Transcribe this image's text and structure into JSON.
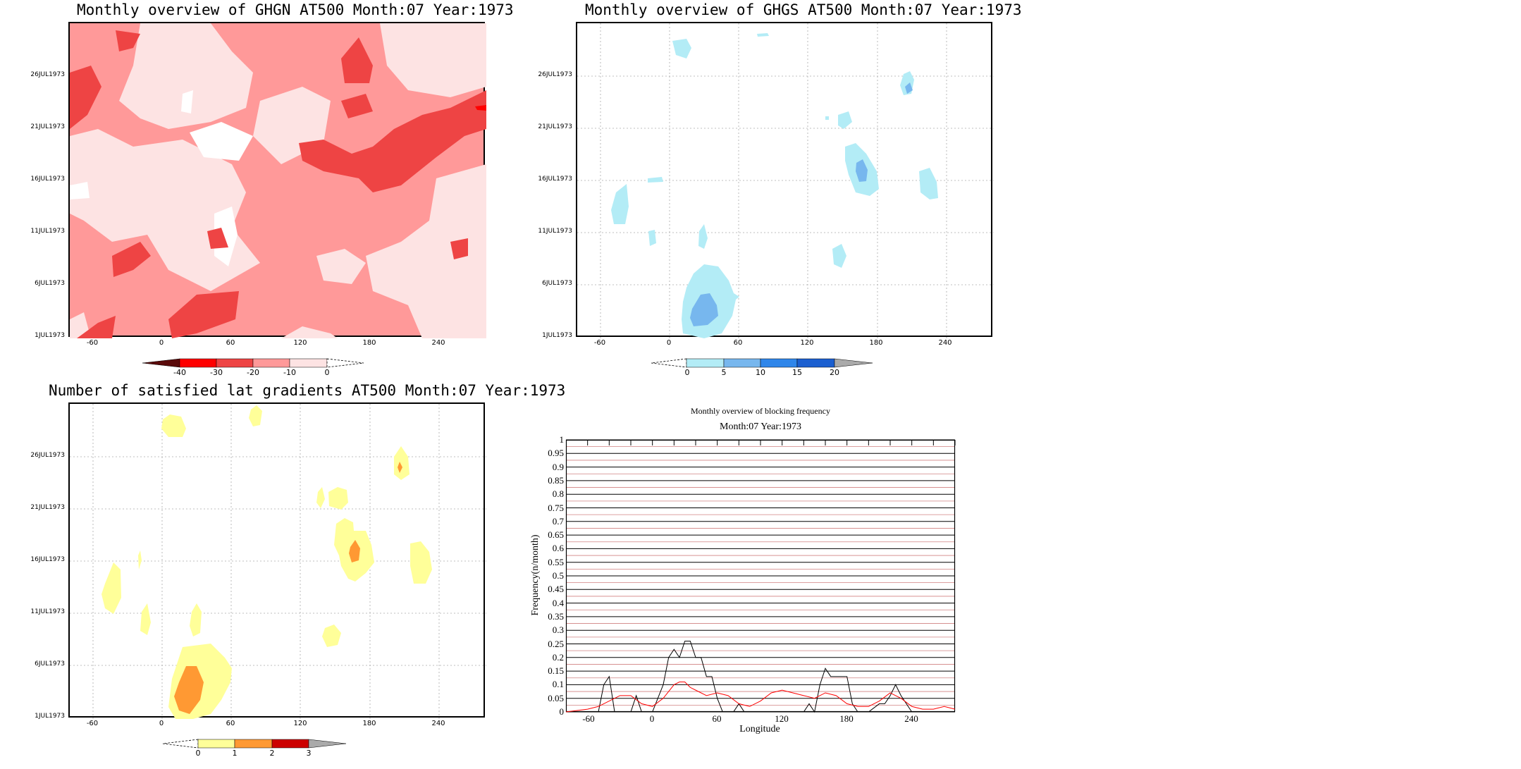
{
  "panels": {
    "ghgn": {
      "title": "Monthly overview of GHGN AT500 Month:07 Year:1973",
      "colorbar_labels": [
        "-40",
        "-30",
        "-20",
        "-10",
        "0"
      ],
      "colors": [
        "#5a0a0a",
        "#ff0000",
        "#ee4444",
        "#ff9999",
        "#fde3e3"
      ]
    },
    "ghgs": {
      "title": "Monthly overview of GHGS AT500 Month:07 Year:1973",
      "colorbar_labels": [
        "0",
        "5",
        "10",
        "15",
        "20"
      ],
      "colors": [
        "#b3ecf6",
        "#77b7ee",
        "#2f86ea",
        "#1b5fd0",
        "#aaaaaa"
      ]
    },
    "grad": {
      "title": "Number of satisfied lat gradients AT500 Month:07 Year:1973",
      "colorbar_labels": [
        "0",
        "1",
        "2",
        "3"
      ],
      "colors": [
        "#ffff99",
        "#ff9933",
        "#cc0000",
        "#aaaaaa"
      ]
    },
    "freq": {
      "title": "Monthly overview of blocking frequency",
      "subtitle": "Month:07 Year:1973",
      "xlabel": "Longitude",
      "ylabel": "Frequency(n/month)"
    }
  },
  "axes": {
    "time_labels": [
      "1JUL1973",
      "6JUL1973",
      "11JUL1973",
      "16JUL1973",
      "21JUL1973",
      "26JUL1973"
    ],
    "lon_labels": [
      "-60",
      "0",
      "60",
      "120",
      "180",
      "240"
    ],
    "freq_ticks": [
      "0",
      "0.05",
      "0.1",
      "0.15",
      "0.2",
      "0.25",
      "0.3",
      "0.35",
      "0.4",
      "0.45",
      "0.5",
      "0.55",
      "0.6",
      "0.65",
      "0.7",
      "0.75",
      "0.8",
      "0.85",
      "0.9",
      "0.95",
      "1"
    ]
  },
  "chart_data": [
    {
      "type": "heatmap",
      "title": "Monthly overview of GHGN AT500 Month:07 Year:1973",
      "x": "longitude",
      "y": "time",
      "xlim": [
        -80,
        280
      ],
      "levels": [
        -40,
        -30,
        -20,
        -10,
        0
      ]
    },
    {
      "type": "heatmap",
      "title": "Monthly overview of GHGS AT500 Month:07 Year:1973",
      "x": "longitude",
      "y": "time",
      "xlim": [
        -80,
        280
      ],
      "levels": [
        0,
        5,
        10,
        15,
        20
      ]
    },
    {
      "type": "heatmap",
      "title": "Number of satisfied lat gradients AT500 Month:07 Year:1973",
      "x": "longitude",
      "y": "time",
      "xlim": [
        -80,
        280
      ],
      "levels": [
        0,
        1,
        2,
        3
      ]
    },
    {
      "type": "line",
      "title": "Monthly overview of blocking frequency",
      "subtitle": "Month:07 Year:1973",
      "xlabel": "Longitude",
      "ylabel": "Frequency(n/month)",
      "xlim": [
        -80,
        280
      ],
      "ylim": [
        0,
        1
      ],
      "series": [
        {
          "color": "#000000",
          "x": [
            -80,
            -60,
            -50,
            -45,
            -40,
            -35,
            -30,
            -20,
            -15,
            -10,
            -5,
            0,
            5,
            10,
            15,
            20,
            25,
            30,
            35,
            40,
            45,
            50,
            55,
            60,
            65,
            70,
            75,
            80,
            85,
            90,
            95,
            100,
            110,
            120,
            130,
            140,
            145,
            150,
            155,
            160,
            165,
            170,
            175,
            180,
            185,
            190,
            200,
            210,
            215,
            220,
            225,
            230,
            240,
            250,
            260,
            270,
            280
          ],
          "y": [
            0,
            0,
            0,
            0.1,
            0.13,
            0,
            0,
            0,
            0.06,
            0,
            0,
            0,
            0.05,
            0.1,
            0.2,
            0.23,
            0.2,
            0.26,
            0.26,
            0.2,
            0.2,
            0.13,
            0.13,
            0.05,
            0,
            0,
            0,
            0.03,
            0,
            0,
            0,
            0,
            0,
            0,
            0,
            0,
            0.03,
            0,
            0.1,
            0.16,
            0.13,
            0.13,
            0.13,
            0.13,
            0.03,
            0,
            0,
            0.03,
            0.03,
            0.06,
            0.1,
            0.06,
            0,
            0,
            0,
            0,
            0
          ]
        },
        {
          "color": "#ff0000",
          "x": [
            -80,
            -60,
            -50,
            -40,
            -30,
            -20,
            -10,
            0,
            10,
            20,
            25,
            30,
            35,
            40,
            50,
            60,
            70,
            80,
            90,
            100,
            110,
            120,
            130,
            140,
            150,
            160,
            170,
            180,
            190,
            200,
            210,
            220,
            230,
            240,
            250,
            260,
            270,
            280
          ],
          "y": [
            0,
            0.01,
            0.02,
            0.04,
            0.06,
            0.06,
            0.03,
            0.02,
            0.05,
            0.1,
            0.11,
            0.11,
            0.09,
            0.08,
            0.06,
            0.07,
            0.06,
            0.03,
            0.02,
            0.04,
            0.07,
            0.08,
            0.07,
            0.06,
            0.05,
            0.07,
            0.06,
            0.03,
            0.02,
            0.02,
            0.04,
            0.07,
            0.05,
            0.02,
            0.01,
            0.01,
            0.02,
            0.01
          ]
        }
      ]
    }
  ]
}
